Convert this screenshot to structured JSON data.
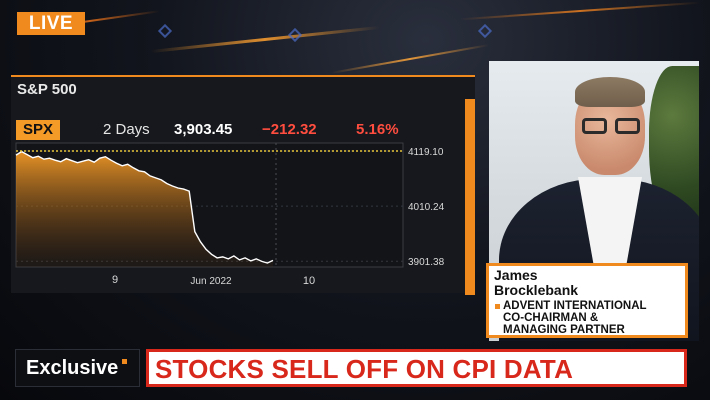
{
  "broadcast": {
    "live_label": "LIVE",
    "exclusive_label": "Exclusive",
    "headline": "STOCKS SELL OFF ON CPI DATA",
    "colors": {
      "accent": "#f08a1e",
      "headline_red": "#d8271b",
      "chart_fill": "#f39a27"
    }
  },
  "chart_panel": {
    "title": "S&P 500",
    "ticker": "SPX",
    "range_label": "2 Days",
    "price": "3,903.45",
    "change": "−212.32",
    "change_pct": "5.16%"
  },
  "chart_data": {
    "type": "area",
    "title": "S&P 500",
    "x_ticks": [
      "9",
      "Jun 2022",
      "10"
    ],
    "y_ticks": [
      4119.1,
      4010.24,
      3901.38
    ],
    "ylim": [
      3890,
      4135
    ],
    "reference_line": 4119.1,
    "series": [
      {
        "values": [
          4111,
          4118,
          4112,
          4106,
          4109,
          4103,
          4105,
          4101,
          4098,
          4104,
          4100,
          4096,
          4099,
          4102,
          4097,
          4105,
          4108,
          4101,
          4095,
          4090,
          4093,
          4086,
          4080,
          4078,
          4070,
          4066,
          4062,
          4055,
          4050,
          4046,
          4044,
          4040,
          3960,
          3940,
          3925,
          3915,
          3908,
          3910,
          3906,
          3912,
          3904,
          3908,
          3902,
          3906,
          3901,
          3898,
          3903
        ]
      }
    ]
  },
  "guest": {
    "first_name": "James",
    "last_name": "Brocklebank",
    "title_lines": [
      "ADVENT INTERNATIONAL",
      "CO-CHAIRMAN &",
      "MANAGING PARTNER"
    ]
  }
}
